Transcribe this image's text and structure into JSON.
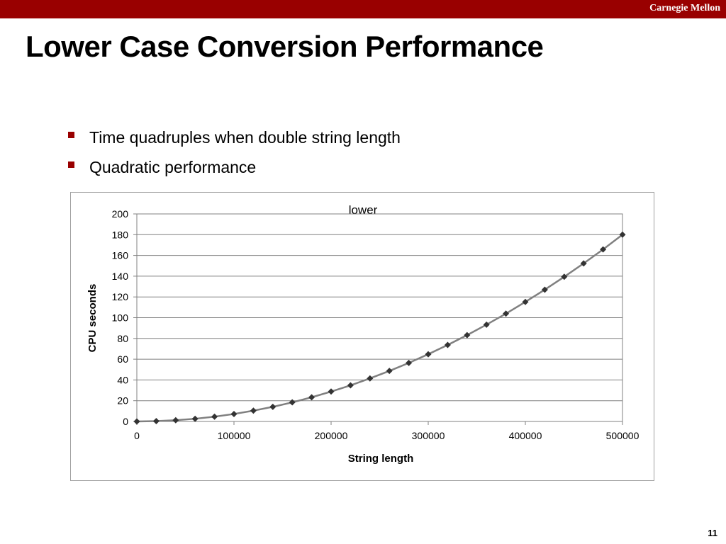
{
  "header": {
    "institution": "Carnegie Mellon",
    "accent_color": "#990000"
  },
  "slide": {
    "title": "Lower Case Conversion Performance",
    "bullets": [
      "Time quadruples when double string length",
      "Quadratic performance"
    ],
    "page_number": "11"
  },
  "chart_data": {
    "type": "line",
    "title": "lower",
    "xlabel": "String length",
    "ylabel": "CPU seconds",
    "xlim": [
      0,
      500000
    ],
    "ylim": [
      0,
      200
    ],
    "x_ticks": [
      0,
      100000,
      200000,
      300000,
      400000,
      500000
    ],
    "y_ticks": [
      0,
      20,
      40,
      60,
      80,
      100,
      120,
      140,
      160,
      180,
      200
    ],
    "grid": true,
    "legend": "none",
    "series": [
      {
        "color": "#808080",
        "marker_color": "#333333",
        "marker": "diamond",
        "x": [
          0,
          20000,
          40000,
          60000,
          80000,
          100000,
          120000,
          140000,
          160000,
          180000,
          200000,
          220000,
          240000,
          260000,
          280000,
          300000,
          320000,
          340000,
          360000,
          380000,
          400000,
          420000,
          440000,
          460000,
          480000,
          500000
        ],
        "y": [
          0,
          0.3,
          1.2,
          2.6,
          4.6,
          7.2,
          10.4,
          14.1,
          18.4,
          23.3,
          28.8,
          34.8,
          41.5,
          48.7,
          56.4,
          64.8,
          73.7,
          83.2,
          93.3,
          103.9,
          115.2,
          127,
          139.4,
          152.3,
          165.8,
          180
        ]
      }
    ]
  }
}
